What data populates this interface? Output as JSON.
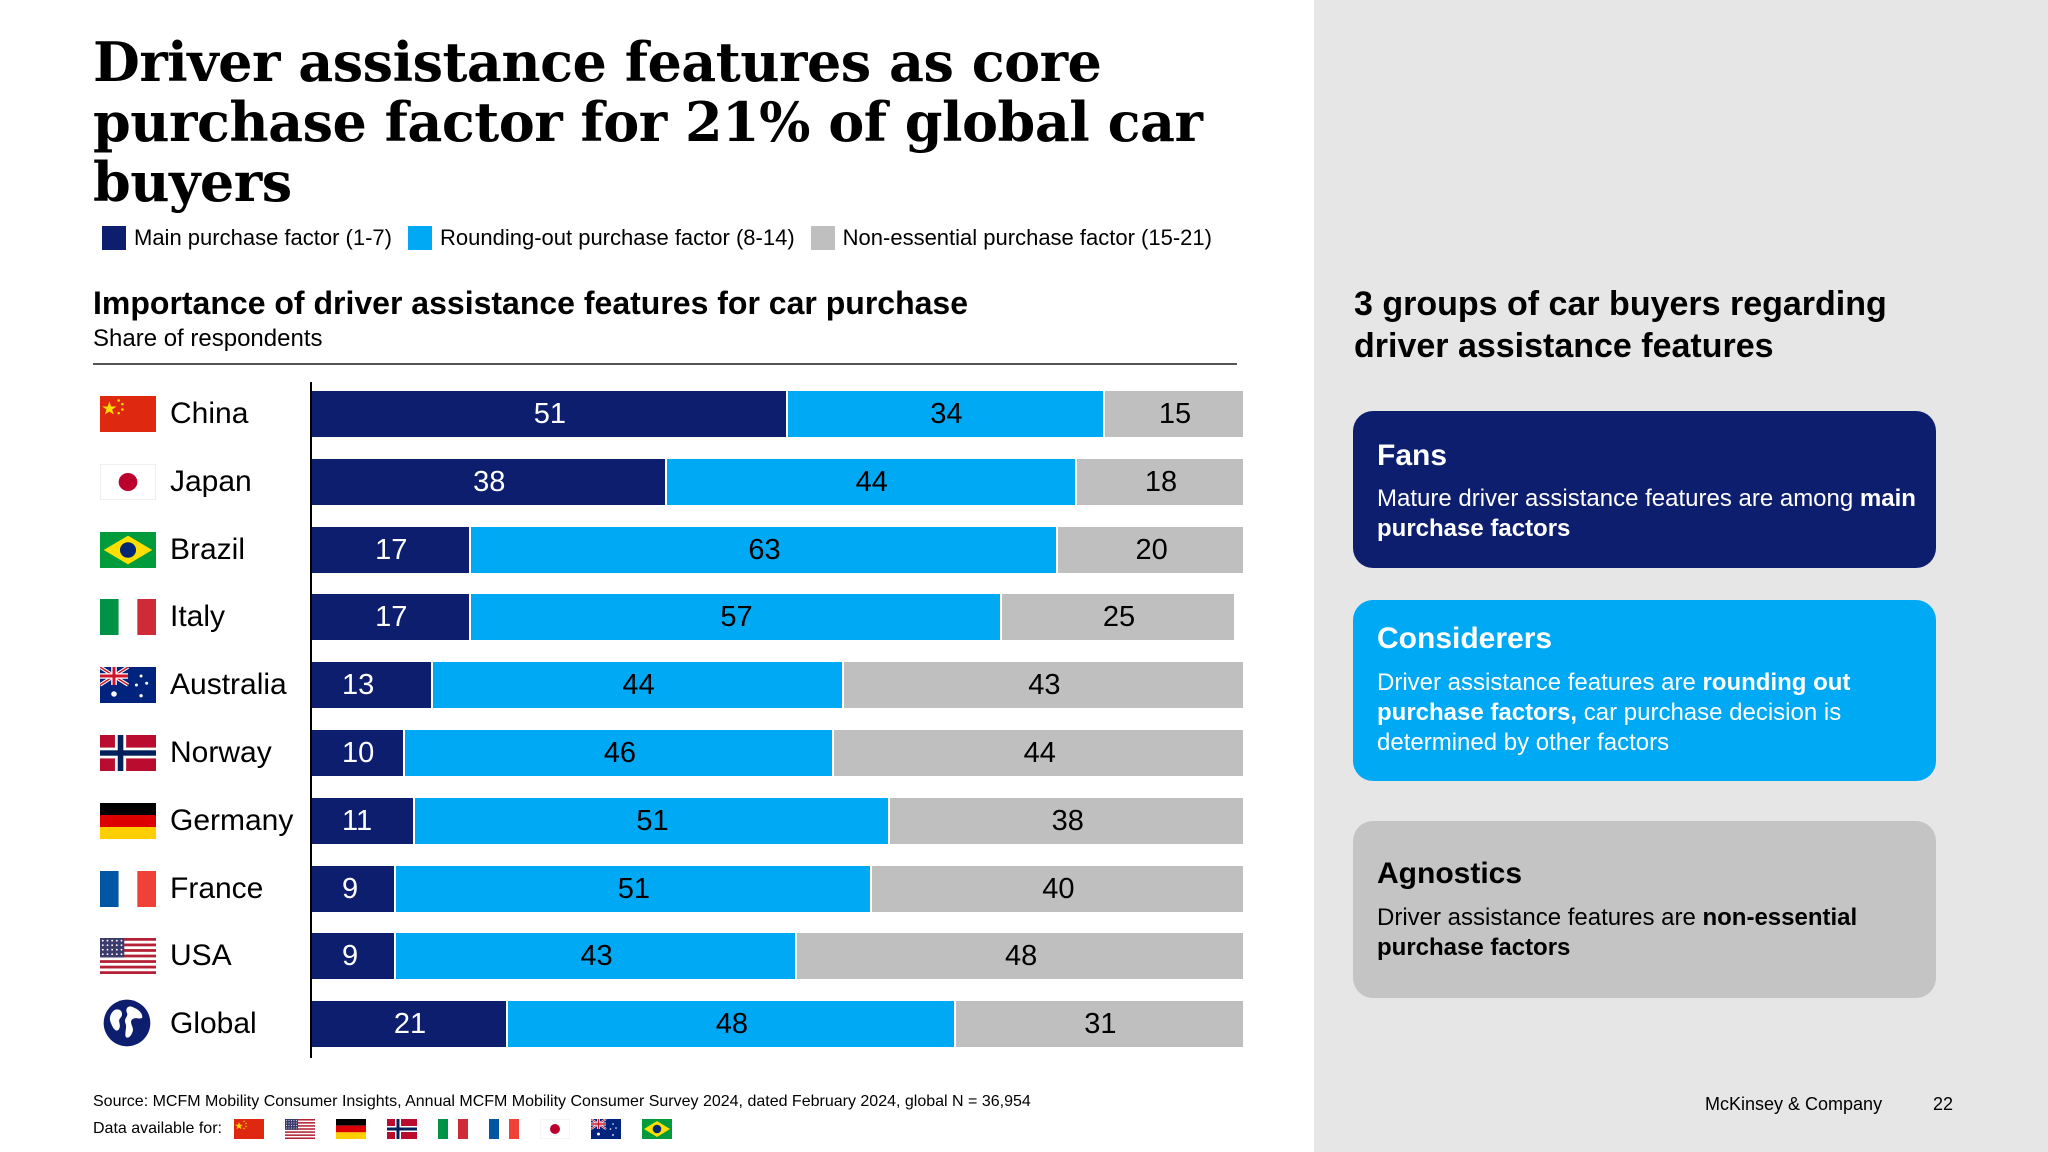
{
  "title": "Driver assistance features as core purchase factor for 21% of global car buyers",
  "legend": [
    {
      "label": "Main purchase factor (1-7)",
      "color": "#0d1e6e"
    },
    {
      "label": "Rounding-out purchase factor (8-14)",
      "color": "#00a9f4"
    },
    {
      "label": "Non-essential purchase factor (15-21)",
      "color": "#bfbfbf"
    }
  ],
  "chart_heading": "Importance of driver assistance features for car purchase",
  "chart_subheading": "Share of respondents",
  "chart_data": {
    "type": "bar",
    "orientation": "horizontal",
    "stacked": true,
    "title": "Importance of driver assistance features for car purchase",
    "subtitle": "Share of respondents",
    "categories": [
      "China",
      "Japan",
      "Brazil",
      "Italy",
      "Australia",
      "Norway",
      "Germany",
      "France",
      "USA",
      "Global"
    ],
    "series": [
      {
        "name": "Main purchase factor (1-7)",
        "color": "#0d1e6e",
        "label_color": "#ffffff",
        "values": [
          51,
          38,
          17,
          17,
          13,
          10,
          11,
          9,
          9,
          21
        ]
      },
      {
        "name": "Rounding-out purchase factor (8-14)",
        "color": "#00a9f4",
        "label_color": "#000000",
        "values": [
          34,
          44,
          63,
          57,
          44,
          46,
          51,
          51,
          43,
          48
        ]
      },
      {
        "name": "Non-essential purchase factor (15-21)",
        "color": "#bfbfbf",
        "label_color": "#000000",
        "values": [
          15,
          18,
          20,
          25,
          43,
          44,
          38,
          40,
          48,
          31
        ]
      }
    ],
    "xlim": [
      0,
      100
    ],
    "grid": false,
    "legend_position": "top"
  },
  "flags": [
    "china-flag-icon",
    "japan-flag-icon",
    "brazil-flag-icon",
    "italy-flag-icon",
    "australia-flag-icon",
    "norway-flag-icon",
    "germany-flag-icon",
    "france-flag-icon",
    "usa-flag-icon",
    "globe-icon"
  ],
  "right_panel": {
    "heading": "3 groups of car buyers regarding driver assistance features",
    "cards": [
      {
        "title": "Fans",
        "text_pre": "Mature driver assistance features are among ",
        "text_bold": "main purchase factors",
        "text_post": "",
        "bg": "#0d1e6e",
        "fg": "#ffffff"
      },
      {
        "title": "Considerers",
        "text_pre": "Driver assistance features are ",
        "text_bold": "rounding out purchase factors,",
        "text_post": " car purchase decision is determined by other factors",
        "bg": "#00a9f4",
        "fg": "#ffffff"
      },
      {
        "title": "Agnostics",
        "text_pre": "Driver assistance features are ",
        "text_bold": "non-essential purchase factors",
        "text_post": "",
        "bg": "#c4c4c4",
        "fg": "#000000"
      }
    ]
  },
  "source": "Source: MCFM Mobility Consumer Insights, Annual MCFM Mobility Consumer Survey 2024, dated February 2024, global N = 36,954",
  "data_available_label": "Data available for:",
  "data_available_flags": [
    "china-flag-icon",
    "usa-flag-icon",
    "germany-flag-icon",
    "norway-flag-icon",
    "italy-flag-icon",
    "france-flag-icon",
    "japan-flag-icon",
    "australia-flag-icon",
    "brazil-flag-icon"
  ],
  "footer": {
    "brand": "McKinsey & Company",
    "page": "22"
  }
}
